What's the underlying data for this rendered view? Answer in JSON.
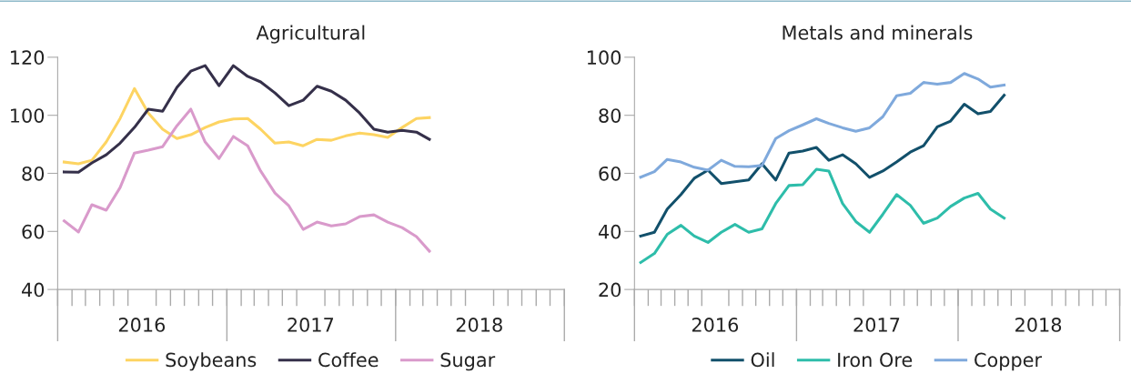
{
  "chart_data": [
    {
      "type": "line",
      "title": "Agricultural",
      "legend": "bottom",
      "grid": false,
      "marker": "none",
      "line_style": "solid",
      "x": [
        "2016-01-15",
        "2016-02-15",
        "2016-03-15",
        "2016-04-15",
        "2016-05-15",
        "2016-06-15",
        "2016-07-15",
        "2016-08-15",
        "2016-09-15",
        "2016-10-15",
        "2016-11-15",
        "2016-12-15",
        "2017-01-15",
        "2017-02-15",
        "2017-03-15",
        "2017-04-15",
        "2017-05-15",
        "2017-06-15",
        "2017-07-15",
        "2017-08-15",
        "2017-09-15",
        "2017-10-15",
        "2017-11-15",
        "2017-12-15",
        "2018-01-15",
        "2018-02-15",
        "2018-03-15"
      ],
      "xlim": [
        "2016-01-01",
        "2019-01-01"
      ],
      "xticks": [
        {
          "value": "2016-07-01",
          "label": "2016"
        },
        {
          "value": "2017-07-01",
          "label": "2017"
        },
        {
          "value": "2018-07-01",
          "label": "2018"
        }
      ],
      "ylim": [
        40,
        120
      ],
      "yticks": [
        40,
        60,
        80,
        100,
        120
      ],
      "series": [
        {
          "name": "Soybeans",
          "color": "#fdd462",
          "values": [
            83.9,
            83.3,
            84.5,
            90.8,
            98.9,
            109.2,
            100.8,
            95.2,
            92.0,
            93.3,
            95.8,
            97.7,
            98.7,
            98.9,
            95.2,
            90.4,
            90.8,
            89.5,
            91.7,
            91.4,
            92.9,
            93.9,
            93.3,
            92.4,
            95.8,
            98.9,
            99.2
          ]
        },
        {
          "name": "Coffee",
          "color": "#35304a",
          "values": [
            80.5,
            80.4,
            83.6,
            86.4,
            90.4,
            95.8,
            102.1,
            101.4,
            109.6,
            115.2,
            117.1,
            110.2,
            117.1,
            113.4,
            111.5,
            107.7,
            103.3,
            105.2,
            110.0,
            108.3,
            105.2,
            100.8,
            95.2,
            94.2,
            94.8,
            94.2,
            91.7
          ]
        },
        {
          "name": "Sugar",
          "color": "#d99acb",
          "values": [
            63.6,
            59.8,
            69.2,
            67.3,
            75.1,
            87.0,
            88.0,
            89.2,
            96.4,
            102.1,
            90.8,
            85.1,
            92.7,
            89.5,
            80.8,
            73.2,
            68.8,
            60.7,
            63.2,
            61.9,
            62.6,
            65.1,
            65.7,
            63.2,
            61.3,
            58.2,
            53.2
          ]
        }
      ]
    },
    {
      "type": "line",
      "title": "Metals and minerals",
      "legend": "bottom",
      "grid": false,
      "marker": "none",
      "line_style": "solid",
      "x": [
        "2016-01-15",
        "2016-02-15",
        "2016-03-15",
        "2016-04-15",
        "2016-05-15",
        "2016-06-15",
        "2016-07-15",
        "2016-08-15",
        "2016-09-15",
        "2016-10-15",
        "2016-11-15",
        "2016-12-15",
        "2017-01-15",
        "2017-02-15",
        "2017-03-15",
        "2017-04-15",
        "2017-05-15",
        "2017-06-15",
        "2017-07-15",
        "2017-08-15",
        "2017-09-15",
        "2017-10-15",
        "2017-11-15",
        "2017-12-15",
        "2018-01-15",
        "2018-02-15",
        "2018-03-15",
        "2018-04-15"
      ],
      "xlim": [
        "2016-01-01",
        "2019-01-01"
      ],
      "xticks": [
        {
          "value": "2016-07-01",
          "label": "2016"
        },
        {
          "value": "2017-07-01",
          "label": "2017"
        },
        {
          "value": "2018-07-01",
          "label": "2018"
        }
      ],
      "ylim": [
        20,
        100
      ],
      "yticks": [
        20,
        40,
        60,
        80,
        100
      ],
      "series": [
        {
          "name": "Oil",
          "color": "#12506b",
          "values": [
            38.4,
            39.7,
            47.7,
            52.7,
            58.3,
            61.1,
            56.5,
            57.1,
            57.7,
            63.3,
            57.7,
            67.0,
            67.7,
            68.9,
            64.5,
            66.4,
            63.3,
            58.6,
            60.8,
            63.9,
            67.3,
            69.5,
            76.0,
            78.0,
            83.8,
            80.5,
            81.3,
            86.9
          ]
        },
        {
          "name": "Iron Ore",
          "color": "#2ebdaa",
          "values": [
            29.3,
            32.4,
            39.0,
            42.1,
            38.4,
            36.2,
            39.7,
            42.4,
            39.7,
            40.9,
            49.6,
            55.8,
            56.1,
            61.4,
            60.8,
            49.6,
            43.4,
            39.7,
            45.9,
            52.7,
            49.0,
            42.8,
            44.6,
            48.6,
            51.5,
            53.1,
            47.7,
            44.6
          ]
        },
        {
          "name": "Copper",
          "color": "#7fa9dc",
          "values": [
            58.7,
            60.6,
            64.8,
            63.9,
            62.1,
            61.1,
            64.5,
            62.4,
            62.3,
            62.7,
            72.0,
            74.7,
            76.7,
            78.8,
            77.2,
            75.7,
            74.5,
            75.7,
            79.5,
            86.7,
            87.6,
            91.3,
            90.7,
            91.3,
            94.4,
            92.5,
            89.7,
            90.4
          ]
        }
      ]
    }
  ]
}
